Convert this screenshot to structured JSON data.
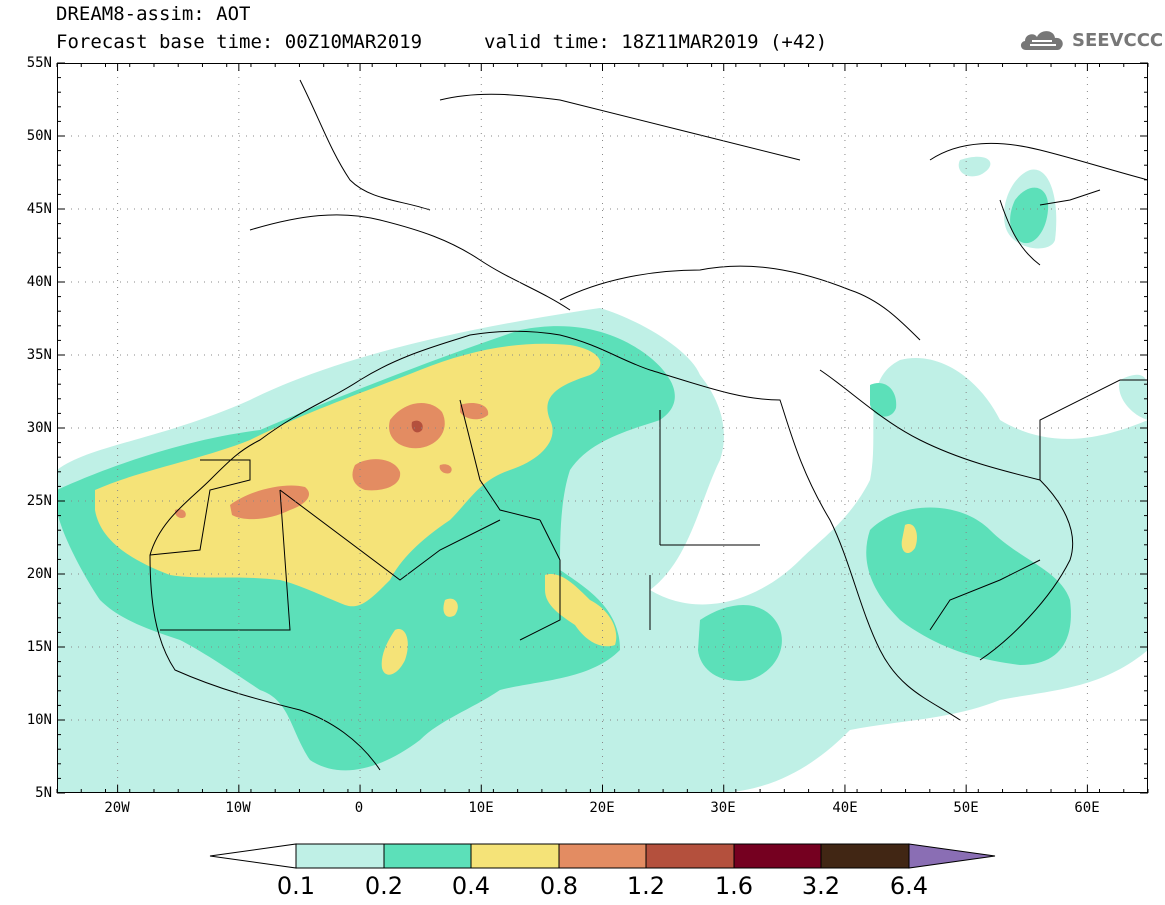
{
  "header": {
    "title": "DREAM8-assim: AOT",
    "base_time": "Forecast base time: 00Z10MAR2019",
    "valid_time": "valid time: 18Z11MAR2019 (+42)"
  },
  "logo": {
    "text": "SEEVCCC",
    "icon": "cloud-icon",
    "color": "#777777"
  },
  "map": {
    "projection": "cylindrical",
    "lon_range": [
      -25,
      65
    ],
    "lat_range": [
      5,
      55
    ],
    "lat_labels": [
      "55N",
      "50N",
      "45N",
      "40N",
      "35N",
      "30N",
      "25N",
      "20N",
      "15N",
      "10N",
      "5N"
    ],
    "lon_labels": [
      "20W",
      "10W",
      "0",
      "10E",
      "20E",
      "30E",
      "40E",
      "50E",
      "60E"
    ],
    "gridlines": "dotted"
  },
  "colorbar": {
    "labels": [
      "0.1",
      "0.2",
      "0.4",
      "0.8",
      "1.2",
      "1.6",
      "3.2",
      "6.4"
    ],
    "colors": [
      "#ffffff",
      "#bff0e6",
      "#5ce0b9",
      "#f5e378",
      "#e38c62",
      "#b4503d",
      "#750020",
      "#412614",
      "#8a6eb4"
    ]
  }
}
